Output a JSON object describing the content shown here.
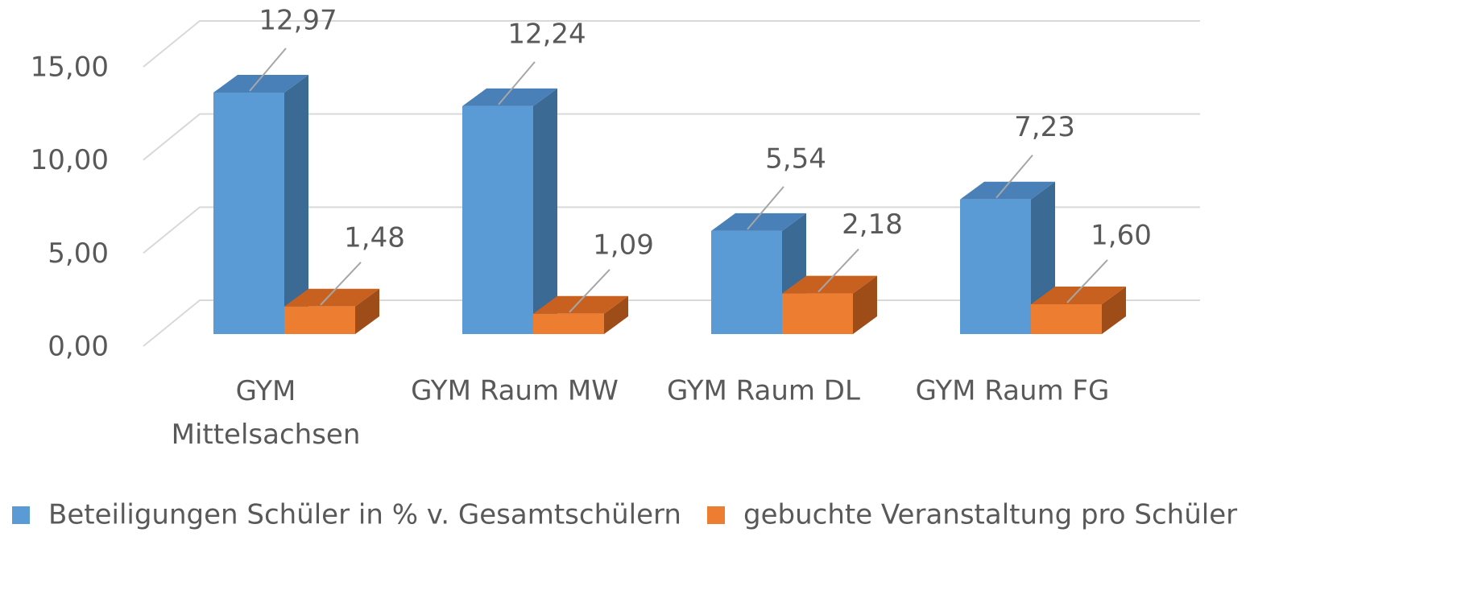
{
  "chart_data": {
    "type": "bar3d",
    "categories": [
      "GYM Mittelsachsen",
      "GYM Raum MW",
      "GYM Raum DL",
      "GYM Raum FG"
    ],
    "series": [
      {
        "name": "Beteiligungen Schüler in % v. Gesamtschülern",
        "color": "#5b9bd5",
        "side": "#3b6a94",
        "top": "#4a80b8",
        "values": [
          12.97,
          12.24,
          5.54,
          7.23
        ],
        "value_labels": [
          "12,97",
          "12,24",
          "5,54",
          "7,23"
        ]
      },
      {
        "name": "gebuchte Veranstaltung pro Schüler",
        "color": "#ed7d31",
        "side": "#9e4c18",
        "top": "#c8611f",
        "values": [
          1.48,
          1.09,
          2.18,
          1.6
        ],
        "value_labels": [
          "1,48",
          "1,09",
          "2,18",
          "1,60"
        ]
      }
    ],
    "ylim": [
      0,
      15
    ],
    "yticks": [
      {
        "value": 0,
        "label": "0,00"
      },
      {
        "value": 5,
        "label": "5,00"
      },
      {
        "value": 10,
        "label": "10,00"
      },
      {
        "value": 15,
        "label": "15,00"
      }
    ],
    "grid": true
  }
}
